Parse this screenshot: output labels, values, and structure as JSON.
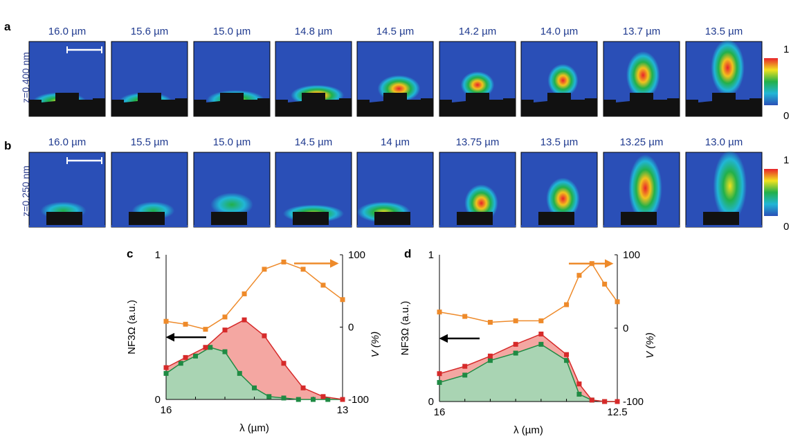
{
  "panel_letters": {
    "a": "a",
    "b": "b",
    "c": "c",
    "d": "d"
  },
  "row_a": {
    "side_label": "z=0.400 nm",
    "wavelengths": [
      "16.0 µm",
      "15.6 µm",
      "15.0 µm",
      "14.8 µm",
      "14.5 µm",
      "14.2 µm",
      "14.0 µm",
      "13.7 µm",
      "13.5 µm"
    ],
    "colorbar": {
      "max": "1",
      "min": "0"
    }
  },
  "row_b": {
    "side_label": "z=0.250 nm",
    "wavelengths": [
      "16.0 µm",
      "15.5 µm",
      "15.0 µm",
      "14.5 µm",
      "14 µm",
      "13.75 µm",
      "13.5 µm",
      "13.25 µm",
      "13.0 µm"
    ],
    "colorbar": {
      "max": "1",
      "min": "0"
    }
  },
  "colors": {
    "map_bg": "#2a4fb7",
    "red": "#d62a2a",
    "green": "#1f8a43",
    "orange": "#ee8a2a",
    "red_fill": "#f4a7a2",
    "green_fill": "#a9d4b3"
  },
  "chart_data": [
    {
      "panel": "c",
      "type": "area",
      "xlabel": "λ (µm)",
      "ylabel_left": "NF3Ω (a.u.)",
      "ylabel_right": "V (%)",
      "x_ticks": [
        "16",
        "13"
      ],
      "left_ticks": [
        "0",
        "1"
      ],
      "right_ticks": [
        "-100",
        "0",
        "100"
      ],
      "xlim": [
        16.0,
        13.0
      ],
      "ylim_left": [
        0,
        1
      ],
      "ylim_right": [
        -100,
        100
      ],
      "series": [
        {
          "axis": "left",
          "color": "red",
          "x": [
            16.0,
            15.67,
            15.33,
            15.0,
            14.67,
            14.33,
            14.0,
            13.67,
            13.33,
            13.0
          ],
          "values": [
            0.22,
            0.29,
            0.36,
            0.48,
            0.55,
            0.44,
            0.25,
            0.08,
            0.02,
            0.0
          ]
        },
        {
          "axis": "left",
          "color": "green",
          "x": [
            16.0,
            15.75,
            15.5,
            15.25,
            15.0,
            14.75,
            14.5,
            14.25,
            14.0,
            13.75,
            13.5,
            13.25,
            13.0
          ],
          "values": [
            0.18,
            0.25,
            0.3,
            0.36,
            0.33,
            0.18,
            0.08,
            0.02,
            0.01,
            0.0,
            0.0,
            0.0,
            0.0
          ]
        },
        {
          "axis": "right",
          "color": "orange",
          "x": [
            16.0,
            15.67,
            15.33,
            15.0,
            14.67,
            14.33,
            14.0,
            13.67,
            13.33,
            13.0
          ],
          "values": [
            8,
            4,
            -3,
            14,
            46,
            80,
            90,
            80,
            58,
            38
          ]
        }
      ]
    },
    {
      "panel": "d",
      "type": "area",
      "xlabel": "λ (µm)",
      "ylabel_left": "NF3Ω (a.u.)",
      "ylabel_right": "V (%)",
      "x_ticks": [
        "16",
        "12.5"
      ],
      "left_ticks": [
        "0",
        "1"
      ],
      "right_ticks": [
        "-100",
        "0",
        "100"
      ],
      "xlim": [
        16.0,
        12.5
      ],
      "ylim_left": [
        0,
        1
      ],
      "ylim_right": [
        -100,
        100
      ],
      "series": [
        {
          "axis": "left",
          "color": "red",
          "x": [
            16.0,
            15.5,
            15.0,
            14.5,
            14.0,
            13.5,
            13.25,
            13.0,
            12.75,
            12.5
          ],
          "values": [
            0.19,
            0.24,
            0.31,
            0.39,
            0.46,
            0.32,
            0.12,
            0.01,
            0.0,
            0.0
          ]
        },
        {
          "axis": "left",
          "color": "green",
          "x": [
            16.0,
            15.5,
            15.0,
            14.5,
            14.0,
            13.5,
            13.25,
            13.0,
            12.75,
            12.5
          ],
          "values": [
            0.13,
            0.18,
            0.28,
            0.33,
            0.39,
            0.28,
            0.05,
            0.01,
            0.0,
            0.0
          ]
        },
        {
          "axis": "right",
          "color": "orange",
          "x": [
            16.0,
            15.5,
            15.0,
            14.5,
            14.0,
            13.5,
            13.25,
            13.0,
            12.75,
            12.5
          ],
          "values": [
            22,
            16,
            8,
            10,
            10,
            32,
            72,
            88,
            60,
            36
          ]
        }
      ]
    }
  ]
}
